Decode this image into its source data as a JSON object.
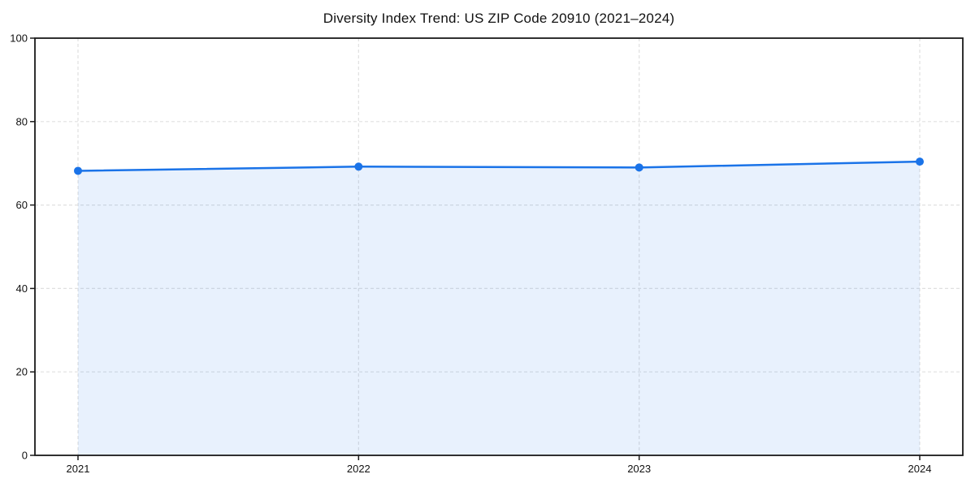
{
  "page": {
    "background": "#ffffff"
  },
  "chart_data": {
    "type": "area",
    "title": "Diversity Index Trend: US ZIP Code 20910 (2021–2024)",
    "categories": [
      "2021",
      "2022",
      "2023",
      "2024"
    ],
    "series": [
      {
        "name": "Diversity Index",
        "values": [
          68.2,
          69.2,
          69.0,
          70.4
        ]
      }
    ],
    "xlabel": "",
    "ylabel": "",
    "ylim": [
      0,
      100
    ],
    "yticks": [
      0,
      20,
      40,
      60,
      80,
      100
    ],
    "grid": true,
    "grid_style": "dashed",
    "legend_position": "none",
    "line_color": "#1a73e8",
    "marker_color": "#1a73e8",
    "fill_color": "rgba(26, 115, 232, 0.10)",
    "grid_color": "#e0e0e0",
    "axis_color": "#1a1a1a",
    "text_color": "#111111"
  }
}
